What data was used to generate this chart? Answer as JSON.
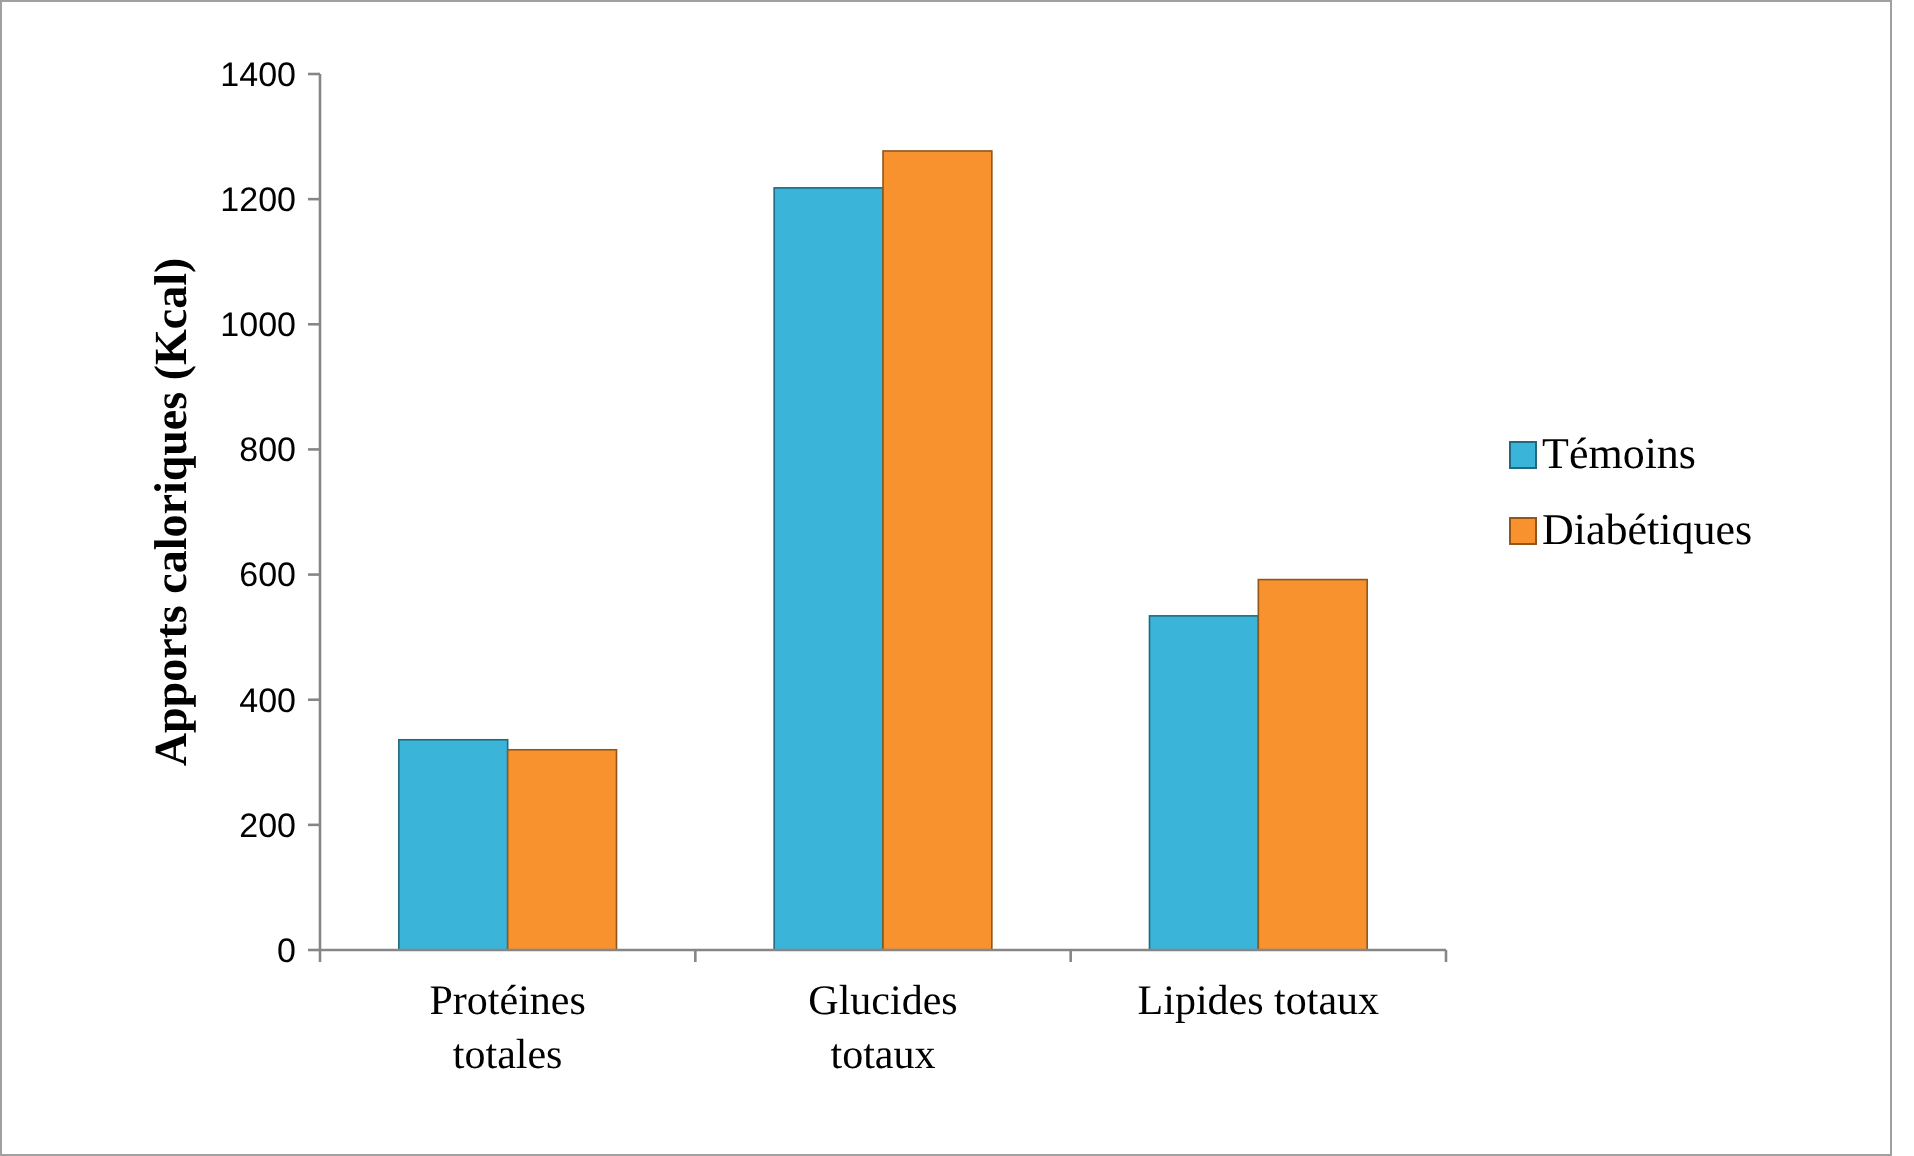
{
  "chart_data": {
    "type": "bar",
    "ylabel": "Apports caloriques (Kcal)",
    "categories": [
      "Protéines totales",
      "Glucides totaux",
      "Lipides totaux"
    ],
    "series": [
      {
        "name": "Témoins",
        "color": "#3ab4d8",
        "values": [
          336,
          1218,
          534
        ]
      },
      {
        "name": "Diabétiques",
        "color": "#f7922e",
        "values": [
          320,
          1277,
          592
        ]
      }
    ],
    "ylim": [
      0,
      1400
    ],
    "yticks": [
      0,
      200,
      400,
      600,
      800,
      1000,
      1200,
      1400
    ],
    "legend": "right",
    "grid": false
  }
}
